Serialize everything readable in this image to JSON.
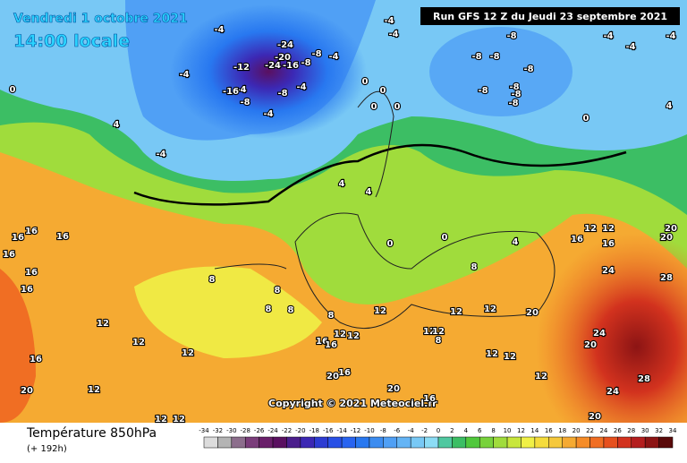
{
  "header": {
    "date": "Vendredi 1 octobre 2021",
    "time": "14:00 locale",
    "run": "Run GFS 12 Z du Jeudi 23 septembre 2021"
  },
  "copyright": "Copyright © 2021 Meteociel.fr",
  "footer": {
    "title": "Température 850hPa",
    "subtitle": "(+ 192h)"
  },
  "scale": {
    "ticks": [
      -34,
      -32,
      -30,
      -28,
      -26,
      -24,
      -22,
      -20,
      -18,
      -16,
      -14,
      -12,
      -10,
      -8,
      -6,
      -4,
      -2,
      0,
      2,
      4,
      6,
      8,
      10,
      12,
      14,
      16,
      18,
      20,
      22,
      24,
      26,
      28,
      30,
      32,
      34
    ],
    "colors": [
      "#dcdcdc",
      "#b4b4b4",
      "#8c6e8c",
      "#7a3d7a",
      "#6a1f6a",
      "#5a1060",
      "#4b1e8c",
      "#3c28b4",
      "#2d3cd2",
      "#2850e6",
      "#2864f0",
      "#2878f0",
      "#3c8cf0",
      "#50a0f5",
      "#64b4f5",
      "#78c8f5",
      "#8cdcf5",
      "#50c8a0",
      "#3cbe64",
      "#50c83c",
      "#78d23c",
      "#a0dc3c",
      "#c8e63c",
      "#f0f046",
      "#f5dc3c",
      "#f5c83c",
      "#f5aa32",
      "#f58c28",
      "#f06e23",
      "#e6501e",
      "#d2321e",
      "#b41e1e",
      "#8c1414",
      "#5a0a0a"
    ]
  },
  "labels": [
    "16",
    "16",
    "16",
    "16",
    "16",
    "16",
    "12",
    "12",
    "12",
    "12",
    "12",
    "12",
    "16",
    "20",
    "8",
    "8",
    "8",
    "8",
    "8",
    "12",
    "12",
    "12",
    "-4",
    "-4",
    "-4",
    "-4",
    "-4",
    "-12",
    "-16",
    "-8",
    "-24",
    "-20",
    "-24",
    "-16",
    "-8",
    "-8",
    "-4",
    "-8",
    "-4",
    "-4",
    "-4",
    "-8",
    "-8",
    "-8",
    "-8",
    "-8",
    "-8",
    "-8",
    "-8",
    "-4",
    "-4",
    "-4",
    "0",
    "0",
    "0",
    "0",
    "0",
    "0",
    "4",
    "4",
    "4",
    "4",
    "0",
    "0",
    "4",
    "8",
    "12",
    "12",
    "16",
    "16",
    "20",
    "20",
    "24",
    "28",
    "20",
    "24",
    "20",
    "28",
    "24",
    "20",
    "20",
    "16",
    "12",
    "12",
    "12",
    "16",
    "16",
    "16",
    "20",
    "12",
    "12",
    "8",
    "12",
    "12"
  ]
}
